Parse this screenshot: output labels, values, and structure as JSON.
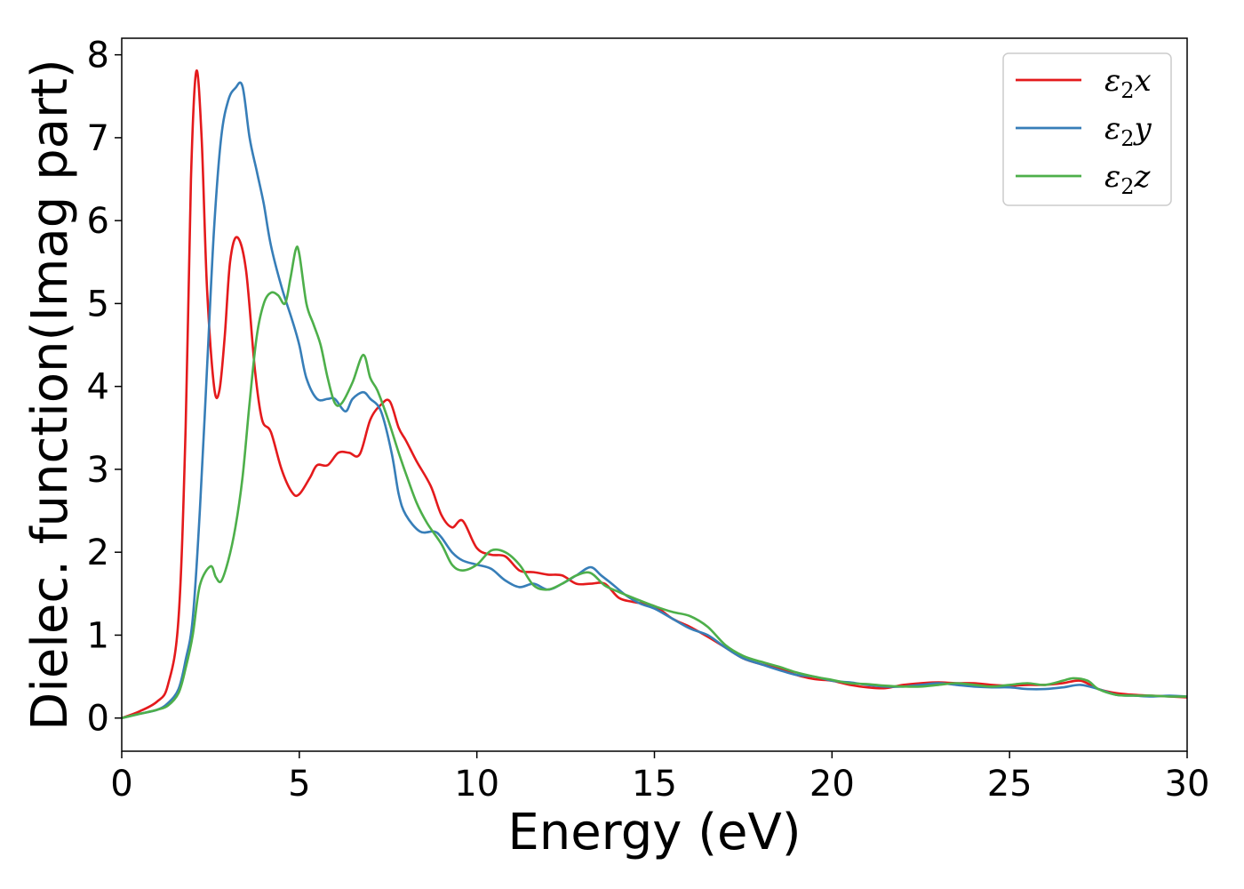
{
  "chart_data": {
    "type": "line",
    "xlabel": "Energy (eV)",
    "ylabel": "Dielec. function(Imag part)",
    "xlim": [
      0,
      30
    ],
    "ylim": [
      -0.4,
      8.2
    ],
    "xticks": [
      0,
      5,
      10,
      15,
      20,
      25,
      30
    ],
    "yticks": [
      0,
      1,
      2,
      3,
      4,
      5,
      6,
      7,
      8
    ],
    "grid": false,
    "legend_position": "top-right",
    "series": [
      {
        "name": "ε₂x",
        "legend": {
          "base": "ε",
          "sub": "2",
          "tail": "x"
        },
        "color": "#e41a1c",
        "x": [
          0,
          0.5,
          1,
          1.3,
          1.6,
          1.8,
          1.95,
          2.1,
          2.25,
          2.4,
          2.6,
          2.75,
          2.9,
          3.05,
          3.25,
          3.5,
          3.75,
          3.95,
          4.2,
          4.5,
          4.8,
          5.0,
          5.3,
          5.5,
          5.8,
          6.1,
          6.4,
          6.7,
          7.0,
          7.3,
          7.55,
          7.8,
          8.0,
          8.3,
          8.7,
          9.0,
          9.3,
          9.6,
          10.0,
          10.4,
          10.8,
          11.2,
          11.6,
          12.0,
          12.4,
          12.8,
          13.2,
          13.6,
          14.0,
          14.4,
          15.0,
          15.5,
          16.0,
          16.5,
          17.0,
          17.5,
          18.0,
          18.5,
          19.0,
          19.5,
          20.0,
          20.5,
          21.0,
          21.5,
          22.0,
          22.5,
          23.0,
          23.5,
          24.0,
          24.5,
          25.0,
          25.5,
          26.0,
          26.5,
          27.0,
          27.5,
          28.0,
          28.5,
          29.0,
          29.5,
          30.0
        ],
        "y": [
          0,
          0.08,
          0.2,
          0.4,
          1.2,
          3.5,
          6.5,
          7.8,
          7.0,
          5.2,
          4.0,
          3.95,
          4.6,
          5.5,
          5.8,
          5.4,
          4.2,
          3.6,
          3.45,
          3.0,
          2.72,
          2.7,
          2.9,
          3.05,
          3.05,
          3.2,
          3.2,
          3.18,
          3.6,
          3.78,
          3.82,
          3.5,
          3.35,
          3.1,
          2.8,
          2.45,
          2.3,
          2.38,
          2.05,
          1.97,
          1.95,
          1.78,
          1.76,
          1.73,
          1.72,
          1.62,
          1.62,
          1.62,
          1.45,
          1.4,
          1.35,
          1.2,
          1.1,
          0.98,
          0.85,
          0.72,
          0.65,
          0.6,
          0.52,
          0.47,
          0.45,
          0.4,
          0.37,
          0.36,
          0.4,
          0.42,
          0.43,
          0.42,
          0.42,
          0.4,
          0.39,
          0.4,
          0.4,
          0.42,
          0.45,
          0.35,
          0.3,
          0.28,
          0.27,
          0.26,
          0.25
        ]
      },
      {
        "name": "ε₂y",
        "legend": {
          "base": "ε",
          "sub": "2",
          "tail": "y"
        },
        "color": "#377eb8",
        "x": [
          0,
          0.5,
          1,
          1.3,
          1.6,
          1.8,
          2.0,
          2.2,
          2.4,
          2.6,
          2.8,
          3.0,
          3.2,
          3.4,
          3.6,
          3.8,
          4.0,
          4.2,
          4.5,
          4.8,
          5.0,
          5.2,
          5.5,
          5.8,
          6.0,
          6.3,
          6.5,
          6.8,
          7.0,
          7.3,
          7.6,
          7.8,
          8.0,
          8.4,
          8.8,
          9.0,
          9.3,
          9.6,
          10.0,
          10.4,
          10.8,
          11.2,
          11.6,
          12.0,
          12.4,
          12.8,
          13.2,
          13.5,
          13.8,
          14.2,
          14.6,
          15.0,
          15.5,
          16.0,
          16.5,
          17.0,
          17.5,
          18.0,
          18.5,
          19.0,
          19.5,
          20.0,
          20.5,
          21.0,
          21.5,
          22.0,
          22.5,
          23.0,
          23.5,
          24.0,
          24.5,
          25.0,
          25.5,
          26.0,
          26.5,
          27.0,
          27.5,
          28.0,
          28.5,
          29.0,
          29.5,
          30.0
        ],
        "y": [
          0,
          0.05,
          0.1,
          0.18,
          0.35,
          0.7,
          1.2,
          2.5,
          4.2,
          5.9,
          7.0,
          7.45,
          7.6,
          7.62,
          7.0,
          6.6,
          6.2,
          5.7,
          5.2,
          4.8,
          4.5,
          4.1,
          3.85,
          3.85,
          3.85,
          3.7,
          3.85,
          3.93,
          3.85,
          3.7,
          3.2,
          2.7,
          2.45,
          2.25,
          2.25,
          2.18,
          2.0,
          1.9,
          1.85,
          1.8,
          1.66,
          1.58,
          1.62,
          1.55,
          1.62,
          1.72,
          1.82,
          1.72,
          1.62,
          1.48,
          1.38,
          1.32,
          1.2,
          1.08,
          1.0,
          0.85,
          0.72,
          0.65,
          0.58,
          0.52,
          0.5,
          0.45,
          0.43,
          0.4,
          0.38,
          0.38,
          0.4,
          0.42,
          0.4,
          0.38,
          0.37,
          0.37,
          0.35,
          0.35,
          0.37,
          0.4,
          0.35,
          0.28,
          0.27,
          0.26,
          0.27,
          0.26
        ]
      },
      {
        "name": "ε₂z",
        "legend": {
          "base": "ε",
          "sub": "2",
          "tail": "z"
        },
        "color": "#4daf4a",
        "x": [
          0,
          0.5,
          1,
          1.3,
          1.6,
          1.8,
          2.0,
          2.2,
          2.5,
          2.65,
          2.8,
          3.0,
          3.2,
          3.4,
          3.6,
          3.8,
          4.0,
          4.2,
          4.4,
          4.6,
          4.75,
          4.9,
          5.0,
          5.2,
          5.4,
          5.6,
          5.8,
          6.0,
          6.2,
          6.5,
          6.8,
          7.0,
          7.2,
          7.5,
          7.8,
          8.0,
          8.3,
          8.6,
          9.0,
          9.3,
          9.6,
          10.0,
          10.4,
          10.8,
          11.2,
          11.6,
          12.0,
          12.4,
          12.8,
          13.2,
          13.6,
          14.0,
          14.4,
          15.0,
          15.5,
          16.0,
          16.5,
          17.0,
          17.5,
          18.0,
          18.5,
          19.0,
          19.5,
          20.0,
          20.5,
          21.0,
          21.5,
          22.0,
          22.5,
          23.0,
          23.5,
          24.0,
          24.5,
          25.0,
          25.5,
          26.0,
          26.5,
          26.8,
          27.2,
          27.5,
          28.0,
          28.5,
          29.0,
          29.5,
          30.0
        ],
        "y": [
          0,
          0.05,
          0.1,
          0.15,
          0.3,
          0.6,
          1.0,
          1.6,
          1.83,
          1.7,
          1.65,
          1.9,
          2.3,
          2.9,
          3.8,
          4.6,
          5.0,
          5.13,
          5.1,
          5.0,
          5.3,
          5.65,
          5.6,
          5.0,
          4.75,
          4.5,
          4.1,
          3.8,
          3.8,
          4.05,
          4.38,
          4.1,
          3.95,
          3.6,
          3.2,
          2.95,
          2.6,
          2.35,
          2.1,
          1.85,
          1.78,
          1.85,
          2.02,
          2.0,
          1.85,
          1.6,
          1.55,
          1.62,
          1.72,
          1.75,
          1.6,
          1.52,
          1.45,
          1.35,
          1.28,
          1.23,
          1.1,
          0.88,
          0.75,
          0.68,
          0.62,
          0.55,
          0.5,
          0.46,
          0.42,
          0.41,
          0.39,
          0.38,
          0.38,
          0.4,
          0.42,
          0.4,
          0.38,
          0.4,
          0.42,
          0.4,
          0.45,
          0.48,
          0.45,
          0.35,
          0.28,
          0.27,
          0.27,
          0.26,
          0.26
        ]
      }
    ]
  }
}
